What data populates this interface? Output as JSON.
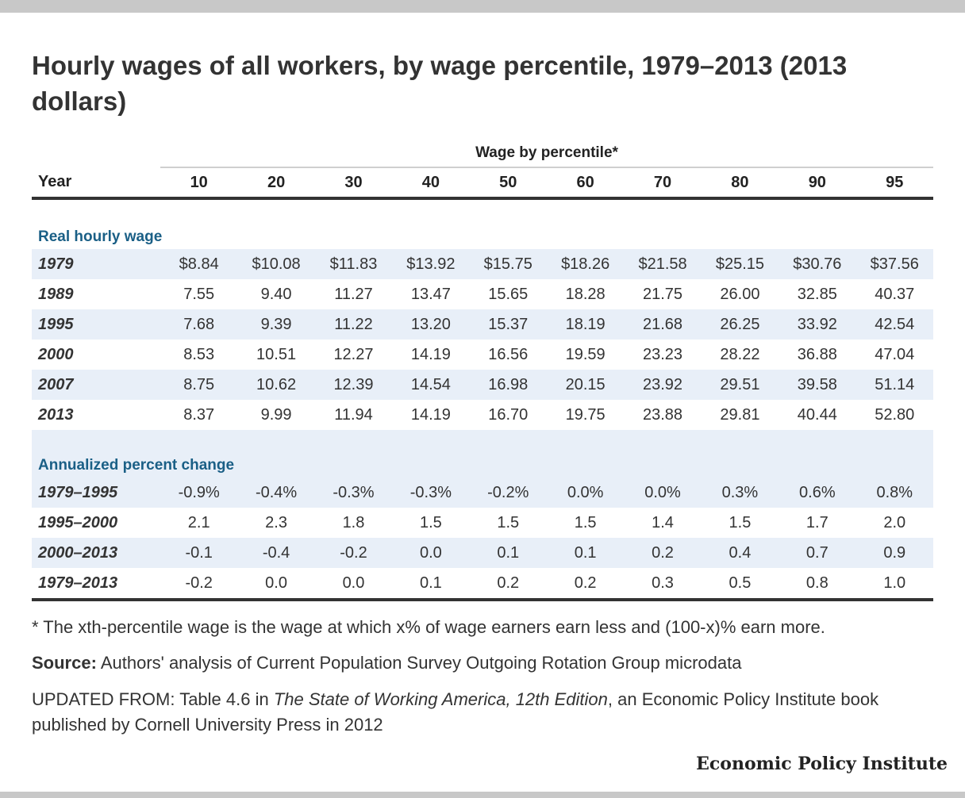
{
  "title": "Hourly wages of all workers, by wage percentile, 1979–2013 (2013 dollars)",
  "chart_data": {
    "type": "table",
    "group_header": "Wage by percentile*",
    "columns": [
      "Year",
      "10",
      "20",
      "30",
      "40",
      "50",
      "60",
      "70",
      "80",
      "90",
      "95"
    ],
    "sections": [
      {
        "label": "Real hourly wage",
        "rows": [
          {
            "year": "1979",
            "values": [
              "$8.84",
              "$10.08",
              "$11.83",
              "$13.92",
              "$15.75",
              "$18.26",
              "$21.58",
              "$25.15",
              "$30.76",
              "$37.56"
            ]
          },
          {
            "year": "1989",
            "values": [
              "7.55",
              "9.40",
              "11.27",
              "13.47",
              "15.65",
              "18.28",
              "21.75",
              "26.00",
              "32.85",
              "40.37"
            ]
          },
          {
            "year": "1995",
            "values": [
              "7.68",
              "9.39",
              "11.22",
              "13.20",
              "15.37",
              "18.19",
              "21.68",
              "26.25",
              "33.92",
              "42.54"
            ]
          },
          {
            "year": "2000",
            "values": [
              "8.53",
              "10.51",
              "12.27",
              "14.19",
              "16.56",
              "19.59",
              "23.23",
              "28.22",
              "36.88",
              "47.04"
            ]
          },
          {
            "year": "2007",
            "values": [
              "8.75",
              "10.62",
              "12.39",
              "14.54",
              "16.98",
              "20.15",
              "23.92",
              "29.51",
              "39.58",
              "51.14"
            ]
          },
          {
            "year": "2013",
            "values": [
              "8.37",
              "9.99",
              "11.94",
              "14.19",
              "16.70",
              "19.75",
              "23.88",
              "29.81",
              "40.44",
              "52.80"
            ]
          }
        ]
      },
      {
        "label": "Annualized percent change",
        "rows": [
          {
            "year": "1979–1995",
            "values": [
              "-0.9%",
              "-0.4%",
              "-0.3%",
              "-0.3%",
              "-0.2%",
              "0.0%",
              "0.0%",
              "0.3%",
              "0.6%",
              "0.8%"
            ]
          },
          {
            "year": "1995–2000",
            "values": [
              "2.1",
              "2.3",
              "1.8",
              "1.5",
              "1.5",
              "1.5",
              "1.4",
              "1.5",
              "1.7",
              "2.0"
            ]
          },
          {
            "year": "2000–2013",
            "values": [
              "-0.1",
              "-0.4",
              "-0.2",
              "0.0",
              "0.1",
              "0.1",
              "0.2",
              "0.4",
              "0.7",
              "0.9"
            ]
          },
          {
            "year": "1979–2013",
            "values": [
              "-0.2",
              "0.0",
              "0.0",
              "0.1",
              "0.2",
              "0.2",
              "0.3",
              "0.5",
              "0.8",
              "1.0"
            ]
          }
        ]
      }
    ]
  },
  "footnote": "* The xth-percentile wage is the wage at which x% of wage earners earn less and (100-x)% earn more.",
  "source": {
    "label": "Source:",
    "text": " Authors' analysis of Current Population Survey Outgoing Rotation Group microdata"
  },
  "updated": {
    "prefix": "UPDATED FROM: Table 4.6 in ",
    "book": "The State of Working America, 12th Edition",
    "suffix": ", an Economic Policy Institute book published by Cornell University Press in 2012"
  },
  "logo": "Economic Policy Institute",
  "colors": {
    "accent": "#1a5f86",
    "shade": "#e8eff8",
    "rule": "#333333",
    "frame": "#c8c8c8"
  }
}
